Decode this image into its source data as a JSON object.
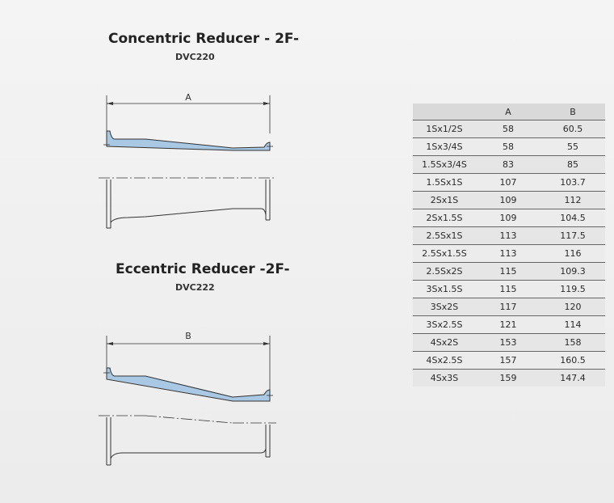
{
  "concentric": {
    "title": "Concentric Reducer - 2F-",
    "code": "DVC220",
    "dim_label": "A"
  },
  "eccentric": {
    "title": "Eccentric Reducer -2F-",
    "code": "DVC222",
    "dim_label": "B"
  },
  "table": {
    "headers": [
      "",
      "A",
      "B"
    ],
    "rows": [
      [
        "1Sx1/2S",
        "58",
        "60.5"
      ],
      [
        "1Sx3/4S",
        "58",
        "55"
      ],
      [
        "1.5Sx3/4S",
        "83",
        "85"
      ],
      [
        "1.5Sx1S",
        "107",
        "103.7"
      ],
      [
        "2Sx1S",
        "109",
        "112"
      ],
      [
        "2Sx1.5S",
        "109",
        "104.5"
      ],
      [
        "2.5Sx1S",
        "113",
        "117.5"
      ],
      [
        "2.5Sx1.5S",
        "113",
        "116"
      ],
      [
        "2.5Sx2S",
        "115",
        "109.3"
      ],
      [
        "3Sx1.5S",
        "115",
        "119.5"
      ],
      [
        "3Sx2S",
        "117",
        "120"
      ],
      [
        "3Sx2.5S",
        "121",
        "114"
      ],
      [
        "4Sx2S",
        "153",
        "158"
      ],
      [
        "4Sx2.5S",
        "157",
        "160.5"
      ],
      [
        "4Sx3S",
        "159",
        "147.4"
      ]
    ]
  },
  "colors": {
    "fitting_fill": "#a9c8e4",
    "line": "#333333"
  }
}
